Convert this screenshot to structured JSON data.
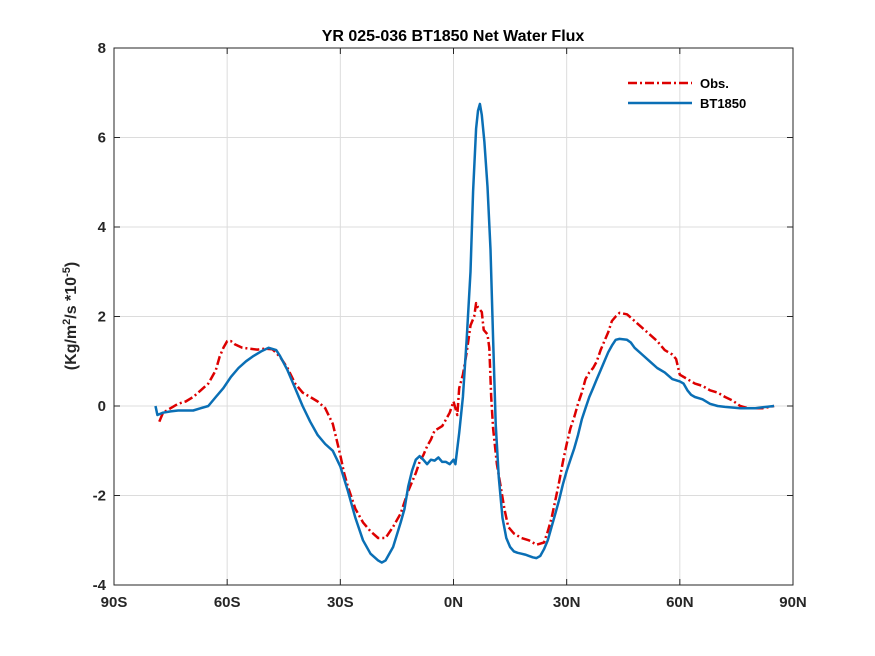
{
  "chart_data": {
    "type": "line",
    "title": "YR 025-036 BT1850  Net Water Flux",
    "ylabel_main": "(Kg/m",
    "ylabel_sup1": "2",
    "ylabel_mid": "/s *10",
    "ylabel_sup2": "-5",
    "ylabel_end": ")",
    "xlim": [
      -90,
      90
    ],
    "ylim": [
      -4,
      8
    ],
    "xticks": [
      -90,
      -60,
      -30,
      0,
      30,
      60,
      90
    ],
    "xtick_labels": [
      "90S",
      "60S",
      "30S",
      "0N",
      "30N",
      "60N",
      "90N"
    ],
    "yticks": [
      -4,
      -2,
      0,
      2,
      4,
      6,
      8
    ],
    "ytick_labels": [
      "-4",
      "-2",
      "0",
      "2",
      "4",
      "6",
      "8"
    ],
    "grid": true,
    "legend_position": "top-right",
    "series": [
      {
        "name": "Obs.",
        "color": "#dd0000",
        "style": "dash-dot",
        "points": [
          [
            -78,
            -0.35
          ],
          [
            -77,
            -0.15
          ],
          [
            -75,
            -0.05
          ],
          [
            -73,
            0.05
          ],
          [
            -71,
            0.1
          ],
          [
            -69,
            0.2
          ],
          [
            -67,
            0.35
          ],
          [
            -65,
            0.5
          ],
          [
            -63,
            0.8
          ],
          [
            -62,
            1.1
          ],
          [
            -61,
            1.3
          ],
          [
            -60,
            1.45
          ],
          [
            -59,
            1.45
          ],
          [
            -58,
            1.38
          ],
          [
            -56,
            1.3
          ],
          [
            -54,
            1.28
          ],
          [
            -52,
            1.26
          ],
          [
            -50,
            1.28
          ],
          [
            -48,
            1.27
          ],
          [
            -46,
            1.1
          ],
          [
            -44,
            0.85
          ],
          [
            -42,
            0.5
          ],
          [
            -40,
            0.3
          ],
          [
            -38,
            0.2
          ],
          [
            -36,
            0.1
          ],
          [
            -34,
            -0.05
          ],
          [
            -32,
            -0.4
          ],
          [
            -31,
            -0.75
          ],
          [
            -30,
            -1.1
          ],
          [
            -29,
            -1.5
          ],
          [
            -28,
            -1.8
          ],
          [
            -26,
            -2.3
          ],
          [
            -24,
            -2.6
          ],
          [
            -22,
            -2.8
          ],
          [
            -20,
            -2.95
          ],
          [
            -18,
            -2.95
          ],
          [
            -16,
            -2.7
          ],
          [
            -14,
            -2.4
          ],
          [
            -12,
            -1.9
          ],
          [
            -10,
            -1.5
          ],
          [
            -9,
            -1.25
          ],
          [
            -8,
            -1.1
          ],
          [
            -7,
            -0.9
          ],
          [
            -6,
            -0.75
          ],
          [
            -5,
            -0.55
          ],
          [
            -4,
            -0.5
          ],
          [
            -3,
            -0.45
          ],
          [
            -2,
            -0.3
          ],
          [
            -1,
            -0.15
          ],
          [
            0,
            0.1
          ],
          [
            1,
            -0.2
          ],
          [
            1.5,
            0.4
          ],
          [
            2.5,
            0.7
          ],
          [
            3.5,
            1.2
          ],
          [
            4.5,
            1.8
          ],
          [
            5.5,
            2.0
          ],
          [
            6,
            2.3
          ],
          [
            6.5,
            2.2
          ],
          [
            7.5,
            2.1
          ],
          [
            8,
            1.7
          ],
          [
            9,
            1.6
          ],
          [
            9.5,
            1.3
          ],
          [
            10,
            0.2
          ],
          [
            10.5,
            -0.5
          ],
          [
            11.5,
            -1.3
          ],
          [
            12.5,
            -1.8
          ],
          [
            13.5,
            -2.3
          ],
          [
            14.5,
            -2.7
          ],
          [
            16,
            -2.85
          ],
          [
            18,
            -2.95
          ],
          [
            20,
            -3.0
          ],
          [
            22,
            -3.1
          ],
          [
            24,
            -3.05
          ],
          [
            25,
            -2.8
          ],
          [
            26,
            -2.5
          ],
          [
            27,
            -2.1
          ],
          [
            28,
            -1.7
          ],
          [
            29,
            -1.25
          ],
          [
            30,
            -0.85
          ],
          [
            31,
            -0.5
          ],
          [
            32,
            -0.25
          ],
          [
            33,
            0.05
          ],
          [
            34,
            0.3
          ],
          [
            35,
            0.6
          ],
          [
            36,
            0.75
          ],
          [
            37,
            0.85
          ],
          [
            38,
            1.0
          ],
          [
            39,
            1.25
          ],
          [
            40,
            1.45
          ],
          [
            41,
            1.65
          ],
          [
            42,
            1.9
          ],
          [
            43,
            2.0
          ],
          [
            44,
            2.08
          ],
          [
            46,
            2.05
          ],
          [
            48,
            1.9
          ],
          [
            50,
            1.75
          ],
          [
            52,
            1.6
          ],
          [
            54,
            1.45
          ],
          [
            56,
            1.25
          ],
          [
            58,
            1.15
          ],
          [
            59,
            1.05
          ],
          [
            60,
            0.7
          ],
          [
            62,
            0.6
          ],
          [
            64,
            0.5
          ],
          [
            66,
            0.45
          ],
          [
            68,
            0.35
          ],
          [
            70,
            0.3
          ],
          [
            72,
            0.2
          ],
          [
            74,
            0.12
          ],
          [
            76,
            0.0
          ],
          [
            78,
            -0.05
          ],
          [
            82,
            -0.05
          ],
          [
            85,
            0.0
          ]
        ]
      },
      {
        "name": "BT1850",
        "color": "#0a6fb5",
        "style": "solid",
        "points": [
          [
            -79,
            0.0
          ],
          [
            -78.5,
            -0.2
          ],
          [
            -77,
            -0.15
          ],
          [
            -75,
            -0.12
          ],
          [
            -73,
            -0.1
          ],
          [
            -71,
            -0.1
          ],
          [
            -69,
            -0.1
          ],
          [
            -67,
            -0.05
          ],
          [
            -65,
            0.0
          ],
          [
            -63,
            0.2
          ],
          [
            -61,
            0.4
          ],
          [
            -59,
            0.65
          ],
          [
            -57,
            0.85
          ],
          [
            -55,
            1.0
          ],
          [
            -53,
            1.12
          ],
          [
            -51,
            1.22
          ],
          [
            -49,
            1.3
          ],
          [
            -47,
            1.25
          ],
          [
            -46,
            1.12
          ],
          [
            -44,
            0.8
          ],
          [
            -42,
            0.4
          ],
          [
            -40,
            0.0
          ],
          [
            -38,
            -0.35
          ],
          [
            -36,
            -0.65
          ],
          [
            -34,
            -0.85
          ],
          [
            -32,
            -1.0
          ],
          [
            -30,
            -1.35
          ],
          [
            -28,
            -1.9
          ],
          [
            -26,
            -2.5
          ],
          [
            -24,
            -3.0
          ],
          [
            -22,
            -3.3
          ],
          [
            -20,
            -3.45
          ],
          [
            -19,
            -3.5
          ],
          [
            -18,
            -3.45
          ],
          [
            -16,
            -3.15
          ],
          [
            -14,
            -2.6
          ],
          [
            -13,
            -2.3
          ],
          [
            -12,
            -1.8
          ],
          [
            -11,
            -1.45
          ],
          [
            -10,
            -1.2
          ],
          [
            -9,
            -1.12
          ],
          [
            -8,
            -1.2
          ],
          [
            -7,
            -1.3
          ],
          [
            -6,
            -1.2
          ],
          [
            -5,
            -1.22
          ],
          [
            -4,
            -1.15
          ],
          [
            -3,
            -1.25
          ],
          [
            -2,
            -1.25
          ],
          [
            -1,
            -1.3
          ],
          [
            0,
            -1.2
          ],
          [
            0.5,
            -1.3
          ],
          [
            1.5,
            -0.6
          ],
          [
            2.5,
            0.2
          ],
          [
            3.5,
            1.5
          ],
          [
            4.5,
            3.0
          ],
          [
            5.2,
            4.8
          ],
          [
            6,
            6.2
          ],
          [
            6.5,
            6.6
          ],
          [
            7,
            6.75
          ],
          [
            7.5,
            6.5
          ],
          [
            8.2,
            5.9
          ],
          [
            9,
            4.9
          ],
          [
            9.8,
            3.5
          ],
          [
            10.5,
            1.5
          ],
          [
            11.2,
            -0.4
          ],
          [
            12,
            -1.6
          ],
          [
            13,
            -2.5
          ],
          [
            14,
            -2.95
          ],
          [
            15,
            -3.15
          ],
          [
            16,
            -3.25
          ],
          [
            17,
            -3.28
          ],
          [
            18,
            -3.3
          ],
          [
            19,
            -3.32
          ],
          [
            20,
            -3.35
          ],
          [
            21,
            -3.38
          ],
          [
            22,
            -3.4
          ],
          [
            23,
            -3.35
          ],
          [
            24,
            -3.2
          ],
          [
            25,
            -3.0
          ],
          [
            26,
            -2.7
          ],
          [
            27,
            -2.4
          ],
          [
            28,
            -2.1
          ],
          [
            29,
            -1.75
          ],
          [
            30,
            -1.45
          ],
          [
            31,
            -1.2
          ],
          [
            32,
            -0.95
          ],
          [
            33,
            -0.65
          ],
          [
            34,
            -0.3
          ],
          [
            35,
            -0.05
          ],
          [
            36,
            0.2
          ],
          [
            37,
            0.4
          ],
          [
            38,
            0.6
          ],
          [
            39,
            0.8
          ],
          [
            40,
            1.0
          ],
          [
            41,
            1.2
          ],
          [
            42,
            1.35
          ],
          [
            43,
            1.48
          ],
          [
            44,
            1.5
          ],
          [
            46,
            1.48
          ],
          [
            47,
            1.42
          ],
          [
            48,
            1.3
          ],
          [
            50,
            1.15
          ],
          [
            52,
            1.0
          ],
          [
            54,
            0.85
          ],
          [
            56,
            0.75
          ],
          [
            58,
            0.6
          ],
          [
            60,
            0.55
          ],
          [
            61,
            0.5
          ],
          [
            62,
            0.35
          ],
          [
            63,
            0.25
          ],
          [
            64,
            0.2
          ],
          [
            66,
            0.15
          ],
          [
            68,
            0.05
          ],
          [
            70,
            0.0
          ],
          [
            72,
            -0.02
          ],
          [
            76,
            -0.05
          ],
          [
            80,
            -0.05
          ],
          [
            82,
            -0.03
          ],
          [
            85,
            0.0
          ]
        ]
      }
    ]
  }
}
